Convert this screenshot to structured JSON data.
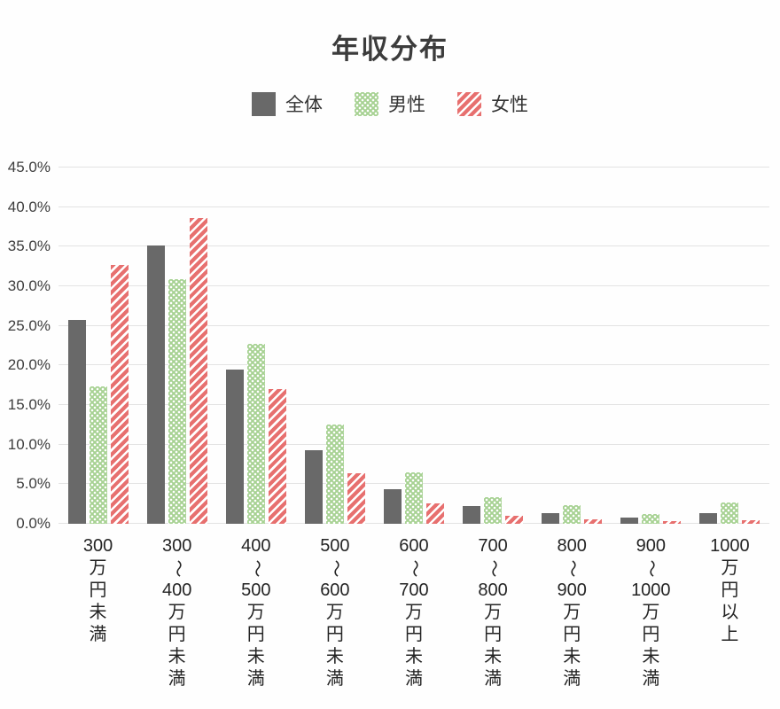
{
  "title": "年収分布",
  "legend": [
    {
      "label": "全体",
      "color": "#696969",
      "pattern": "solid"
    },
    {
      "label": "男性",
      "color": "#a7d293",
      "pattern": "dots"
    },
    {
      "label": "女性",
      "color": "#e7706f",
      "pattern": "stripes"
    }
  ],
  "colors": {
    "bar_overall": "#696969",
    "bar_male": "#a7d293",
    "bar_female": "#e7706f",
    "gridline": "#e3e3e3",
    "text": "#3c3c3c"
  },
  "chart_data": {
    "type": "bar",
    "title": "年収分布",
    "categories": [
      "300万円未満",
      "300〜400万円未満",
      "400〜500万円未満",
      "500〜600万円未満",
      "600〜700万円未満",
      "700〜800万円未満",
      "800〜900万円未満",
      "900〜1000万円未満",
      "1000万円以上"
    ],
    "series": [
      {
        "name": "全体",
        "pattern": "solid",
        "color": "#696969",
        "values": [
          25.8,
          35.1,
          19.5,
          9.3,
          4.4,
          2.2,
          1.3,
          0.8,
          1.4
        ]
      },
      {
        "name": "男性",
        "pattern": "dots",
        "color": "#a7d293",
        "values": [
          17.3,
          30.9,
          22.7,
          12.5,
          6.5,
          3.4,
          2.3,
          1.2,
          2.7
        ]
      },
      {
        "name": "女性",
        "pattern": "stripes",
        "color": "#e7706f",
        "values": [
          32.7,
          38.6,
          17.0,
          6.4,
          2.6,
          1.0,
          0.6,
          0.3,
          0.4
        ]
      }
    ],
    "xlabel": "",
    "ylabel": "",
    "ylim": [
      0,
      45
    ],
    "yticks": [
      0,
      5,
      10,
      15,
      20,
      25,
      30,
      35,
      40,
      45
    ],
    "ytick_labels": [
      "0.0%",
      "5.0%",
      "10.0%",
      "15.0%",
      "20.0%",
      "25.0%",
      "30.0%",
      "35.0%",
      "40.0%",
      "45.0%"
    ],
    "grid": true,
    "legend_position": "top"
  }
}
